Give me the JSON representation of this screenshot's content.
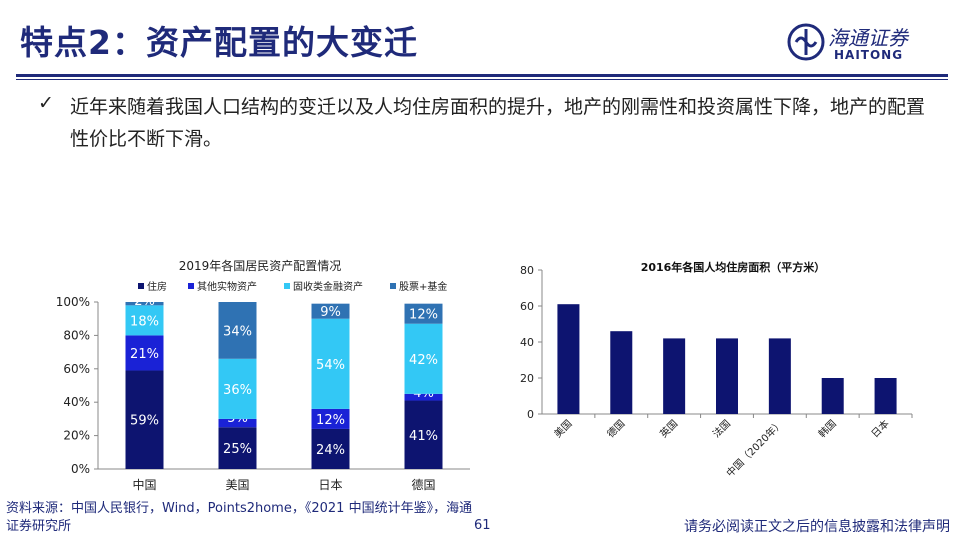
{
  "header": {
    "title": "特点2：资产配置的大变迁",
    "logo_name": "海通证券",
    "logo_en": "HAITONG"
  },
  "bullet": {
    "mark": "✓",
    "text": "近年来随着我国人口结构的变迁以及人均住房面积的提升，地产的刚需性和投资属性下降，地产的配置性价比不断下滑。"
  },
  "chart_data": [
    {
      "type": "bar",
      "stacked": true,
      "title": "2019年各国居民资产配置情况",
      "categories": [
        "中国",
        "美国",
        "日本",
        "德国"
      ],
      "ylim": [
        0,
        100
      ],
      "yticks": [
        "0%",
        "20%",
        "40%",
        "60%",
        "80%",
        "100%"
      ],
      "legend_position": "top",
      "series": [
        {
          "name": "住房",
          "color": "#0d1470",
          "values": [
            59,
            25,
            24,
            41
          ],
          "labels": [
            "59%",
            "25%",
            "24%",
            "41%"
          ]
        },
        {
          "name": "其他实物资产",
          "color": "#1a22d6",
          "values": [
            21,
            5,
            12,
            4
          ],
          "labels": [
            "21%",
            "5%",
            "12%",
            "4%"
          ]
        },
        {
          "name": "固收类金融资产",
          "color": "#33c8f5",
          "values": [
            18,
            36,
            54,
            42
          ],
          "labels": [
            "18%",
            "36%",
            "54%",
            "42%"
          ]
        },
        {
          "name": "股票+基金",
          "color": "#2f72b3",
          "values": [
            2,
            34,
            9,
            12
          ],
          "labels": [
            "2%",
            "34%",
            "9%",
            "12%"
          ]
        }
      ]
    },
    {
      "type": "bar",
      "title": "2016年各国人均住房面积（平方米）",
      "categories": [
        "美国",
        "德国",
        "英国",
        "法国",
        "中国（2020年）",
        "韩国",
        "日本"
      ],
      "values": [
        61,
        46,
        42,
        42,
        42,
        20,
        20
      ],
      "ylim": [
        0,
        80
      ],
      "yticks": [
        "0",
        "20",
        "40",
        "60",
        "80"
      ],
      "color": "#0d1470"
    }
  ],
  "footer": {
    "source": "资料来源：中国人民银行，Wind，Points2home，《2021 中国统计年鉴》，海通证券研究所",
    "page": "61",
    "disclaimer": "请务必阅读正文之后的信息披露和法律声明"
  }
}
